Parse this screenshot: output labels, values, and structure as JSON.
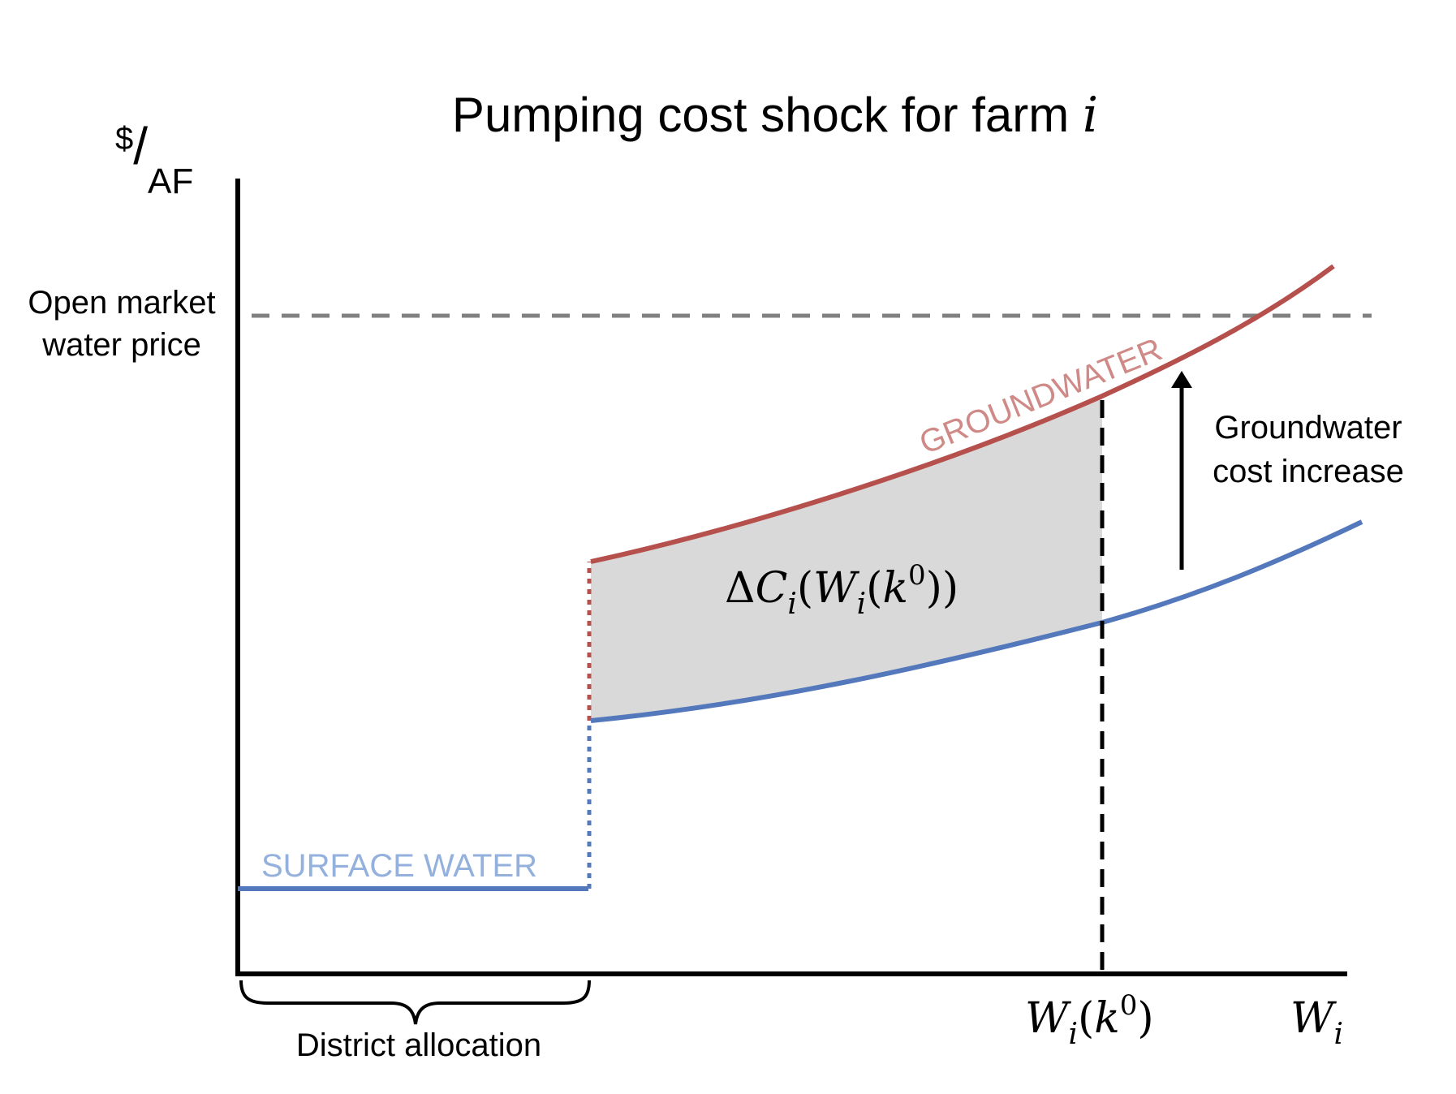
{
  "title": "Pumping cost shock for farm ",
  "title_var": "i",
  "y_axis": {
    "unit_top": "$",
    "unit_slash": "/",
    "unit_bottom": "AF"
  },
  "x_axis": {
    "label_main": "W",
    "label_sub": "i"
  },
  "open_market": {
    "line1": "Open market",
    "line2": "water price"
  },
  "groundwater_label": "GROUNDWATER",
  "surface_water_label": "SURFACE WATER",
  "cost_increase": {
    "line1": "Groundwater",
    "line2": "cost increase"
  },
  "district_allocation": "District allocation",
  "area_label": {
    "delta": "Δ",
    "c": "C",
    "c_sub": "i",
    "open1": "(",
    "w": "W",
    "w_sub": "i",
    "open2": "(",
    "k": "k",
    "k_sup": "0",
    "close": "))"
  },
  "tick_label": {
    "w": "W",
    "w_sub": "i",
    "open": "(",
    "k": "k",
    "k_sup": "0",
    "close": ")"
  },
  "colors": {
    "groundwater": "#b5504d",
    "groundwater_label": "#cf8a87",
    "surface": "#5478bc",
    "surface_label": "#93b1dc",
    "shaded_area": "#d9d9d9",
    "market_line": "#808080",
    "axis": "#000000"
  }
}
